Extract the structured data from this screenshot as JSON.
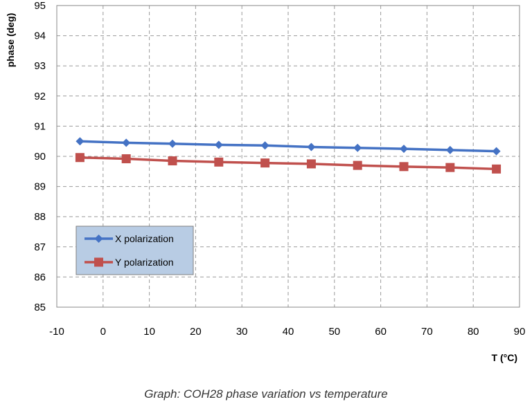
{
  "caption": "Graph: COH28 phase variation vs temperature",
  "chart_data": {
    "type": "line",
    "title": "",
    "xlabel": "T (°C)",
    "ylabel": "phase (deg)",
    "xlim": [
      -10,
      90
    ],
    "ylim": [
      85,
      95
    ],
    "xticks": [
      -10,
      0,
      10,
      20,
      30,
      40,
      50,
      60,
      70,
      80,
      90
    ],
    "yticks": [
      85,
      86,
      87,
      88,
      89,
      90,
      91,
      92,
      93,
      94,
      95
    ],
    "grid": true,
    "legend_position": "bottom-left",
    "x": [
      -5,
      5,
      15,
      25,
      35,
      45,
      55,
      65,
      75,
      85
    ],
    "series": [
      {
        "name": "X polarization",
        "color": "#4472C4",
        "marker": "diamond",
        "values": [
          90.5,
          90.45,
          90.42,
          90.38,
          90.36,
          90.31,
          90.28,
          90.25,
          90.21,
          90.17
        ]
      },
      {
        "name": "Y polarization",
        "color": "#C0504D",
        "marker": "square",
        "values": [
          89.96,
          89.92,
          89.85,
          89.81,
          89.78,
          89.75,
          89.7,
          89.66,
          89.63,
          89.58
        ]
      }
    ]
  }
}
